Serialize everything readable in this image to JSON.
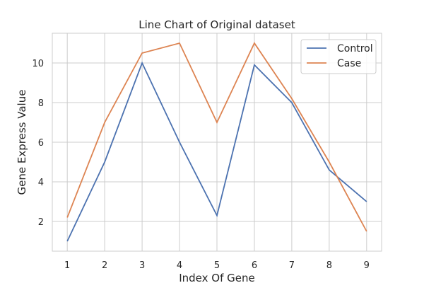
{
  "chart_data": {
    "type": "line",
    "title": "Line Chart of Original dataset",
    "xlabel": "Index Of Gene",
    "ylabel": "Gene Express Value",
    "x": [
      1,
      2,
      3,
      4,
      5,
      6,
      7,
      8,
      9
    ],
    "xlim": [
      0.6,
      9.4
    ],
    "ylim": [
      0.5,
      11.5
    ],
    "yticks": [
      2,
      4,
      6,
      8,
      10
    ],
    "grid": true,
    "legend_position": "top-right",
    "series": [
      {
        "name": "Control",
        "color": "#4c72b0",
        "values": [
          1.0,
          5.0,
          10.0,
          6.0,
          2.3,
          9.9,
          8.0,
          4.6,
          3.0
        ]
      },
      {
        "name": "Case",
        "color": "#dd8452",
        "values": [
          2.2,
          7.0,
          10.5,
          11.0,
          7.0,
          11.0,
          8.2,
          5.0,
          1.5
        ]
      }
    ]
  }
}
